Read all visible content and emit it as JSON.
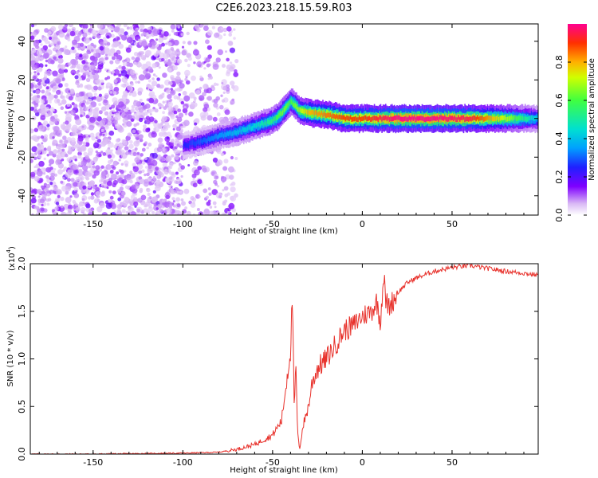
{
  "title": "C2E6.2023.218.15.59.R03",
  "chart_data": [
    {
      "type": "heatmap",
      "xlabel": "Height of straight line (km)",
      "ylabel": "Frequency (Hz)",
      "xlim": [
        -185,
        98
      ],
      "ylim": [
        -50,
        49
      ],
      "xticks": [
        -150,
        -100,
        -50,
        0,
        50
      ],
      "yticks": [
        -40,
        -20,
        0,
        20,
        40
      ],
      "colorbar": {
        "label": "Normalized spectral amplitude",
        "range": [
          0,
          1
        ],
        "ticks": [
          "0.0",
          "0.2",
          "0.4",
          "0.6",
          "0.8"
        ]
      },
      "noise_region_x": [
        -185,
        -70
      ],
      "ridge": {
        "x": [
          -100,
          -90,
          -80,
          -70,
          -60,
          -50,
          -45,
          -40,
          -35,
          -30,
          -20,
          -10,
          0,
          10,
          20,
          40,
          60,
          80,
          98
        ],
        "y": [
          -14,
          -12,
          -9,
          -7,
          -4,
          -1,
          3,
          9,
          4,
          3,
          2,
          0,
          0,
          0,
          0,
          0,
          0,
          0,
          0
        ],
        "amplitude": [
          0.25,
          0.3,
          0.35,
          0.4,
          0.45,
          0.55,
          0.65,
          0.6,
          0.7,
          0.8,
          0.85,
          0.9,
          0.9,
          0.95,
          1.0,
          1.0,
          0.95,
          0.7,
          0.4
        ]
      }
    },
    {
      "type": "line",
      "xlabel": "Height of straight line (km)",
      "ylabel": "SNR (10 * v/v)",
      "y_multiplier": "(x10",
      "y_multiplier_exp": "4",
      "y_multiplier_close": ")",
      "xlim": [
        -185,
        98
      ],
      "ylim": [
        0,
        2.0
      ],
      "xticks": [
        -150,
        -100,
        -50,
        0,
        50
      ],
      "yticks": [
        "0.0",
        "0.5",
        "1.0",
        "1.5",
        "2.0"
      ],
      "color": "#e8322c",
      "series": [
        {
          "x": [
            -185,
            -150,
            -100,
            -80,
            -70,
            -60,
            -55,
            -50,
            -45,
            -42,
            -40,
            -39,
            -38,
            -37,
            -36,
            -35,
            -33,
            -30,
            -28,
            -25,
            -20,
            -15,
            -10,
            -5,
            0,
            5,
            8,
            10,
            12,
            13,
            15,
            20,
            25,
            30,
            40,
            50,
            60,
            70,
            80,
            90,
            98
          ],
          "y": [
            0.0,
            0.0,
            0.01,
            0.02,
            0.05,
            0.1,
            0.15,
            0.2,
            0.35,
            0.8,
            1.1,
            1.65,
            0.5,
            0.9,
            0.2,
            0.05,
            0.3,
            0.5,
            0.75,
            0.9,
            1.0,
            1.15,
            1.3,
            1.35,
            1.45,
            1.5,
            1.6,
            1.4,
            1.9,
            1.6,
            1.55,
            1.7,
            1.8,
            1.85,
            1.92,
            1.96,
            1.98,
            1.95,
            1.92,
            1.9,
            1.88
          ]
        }
      ]
    }
  ]
}
